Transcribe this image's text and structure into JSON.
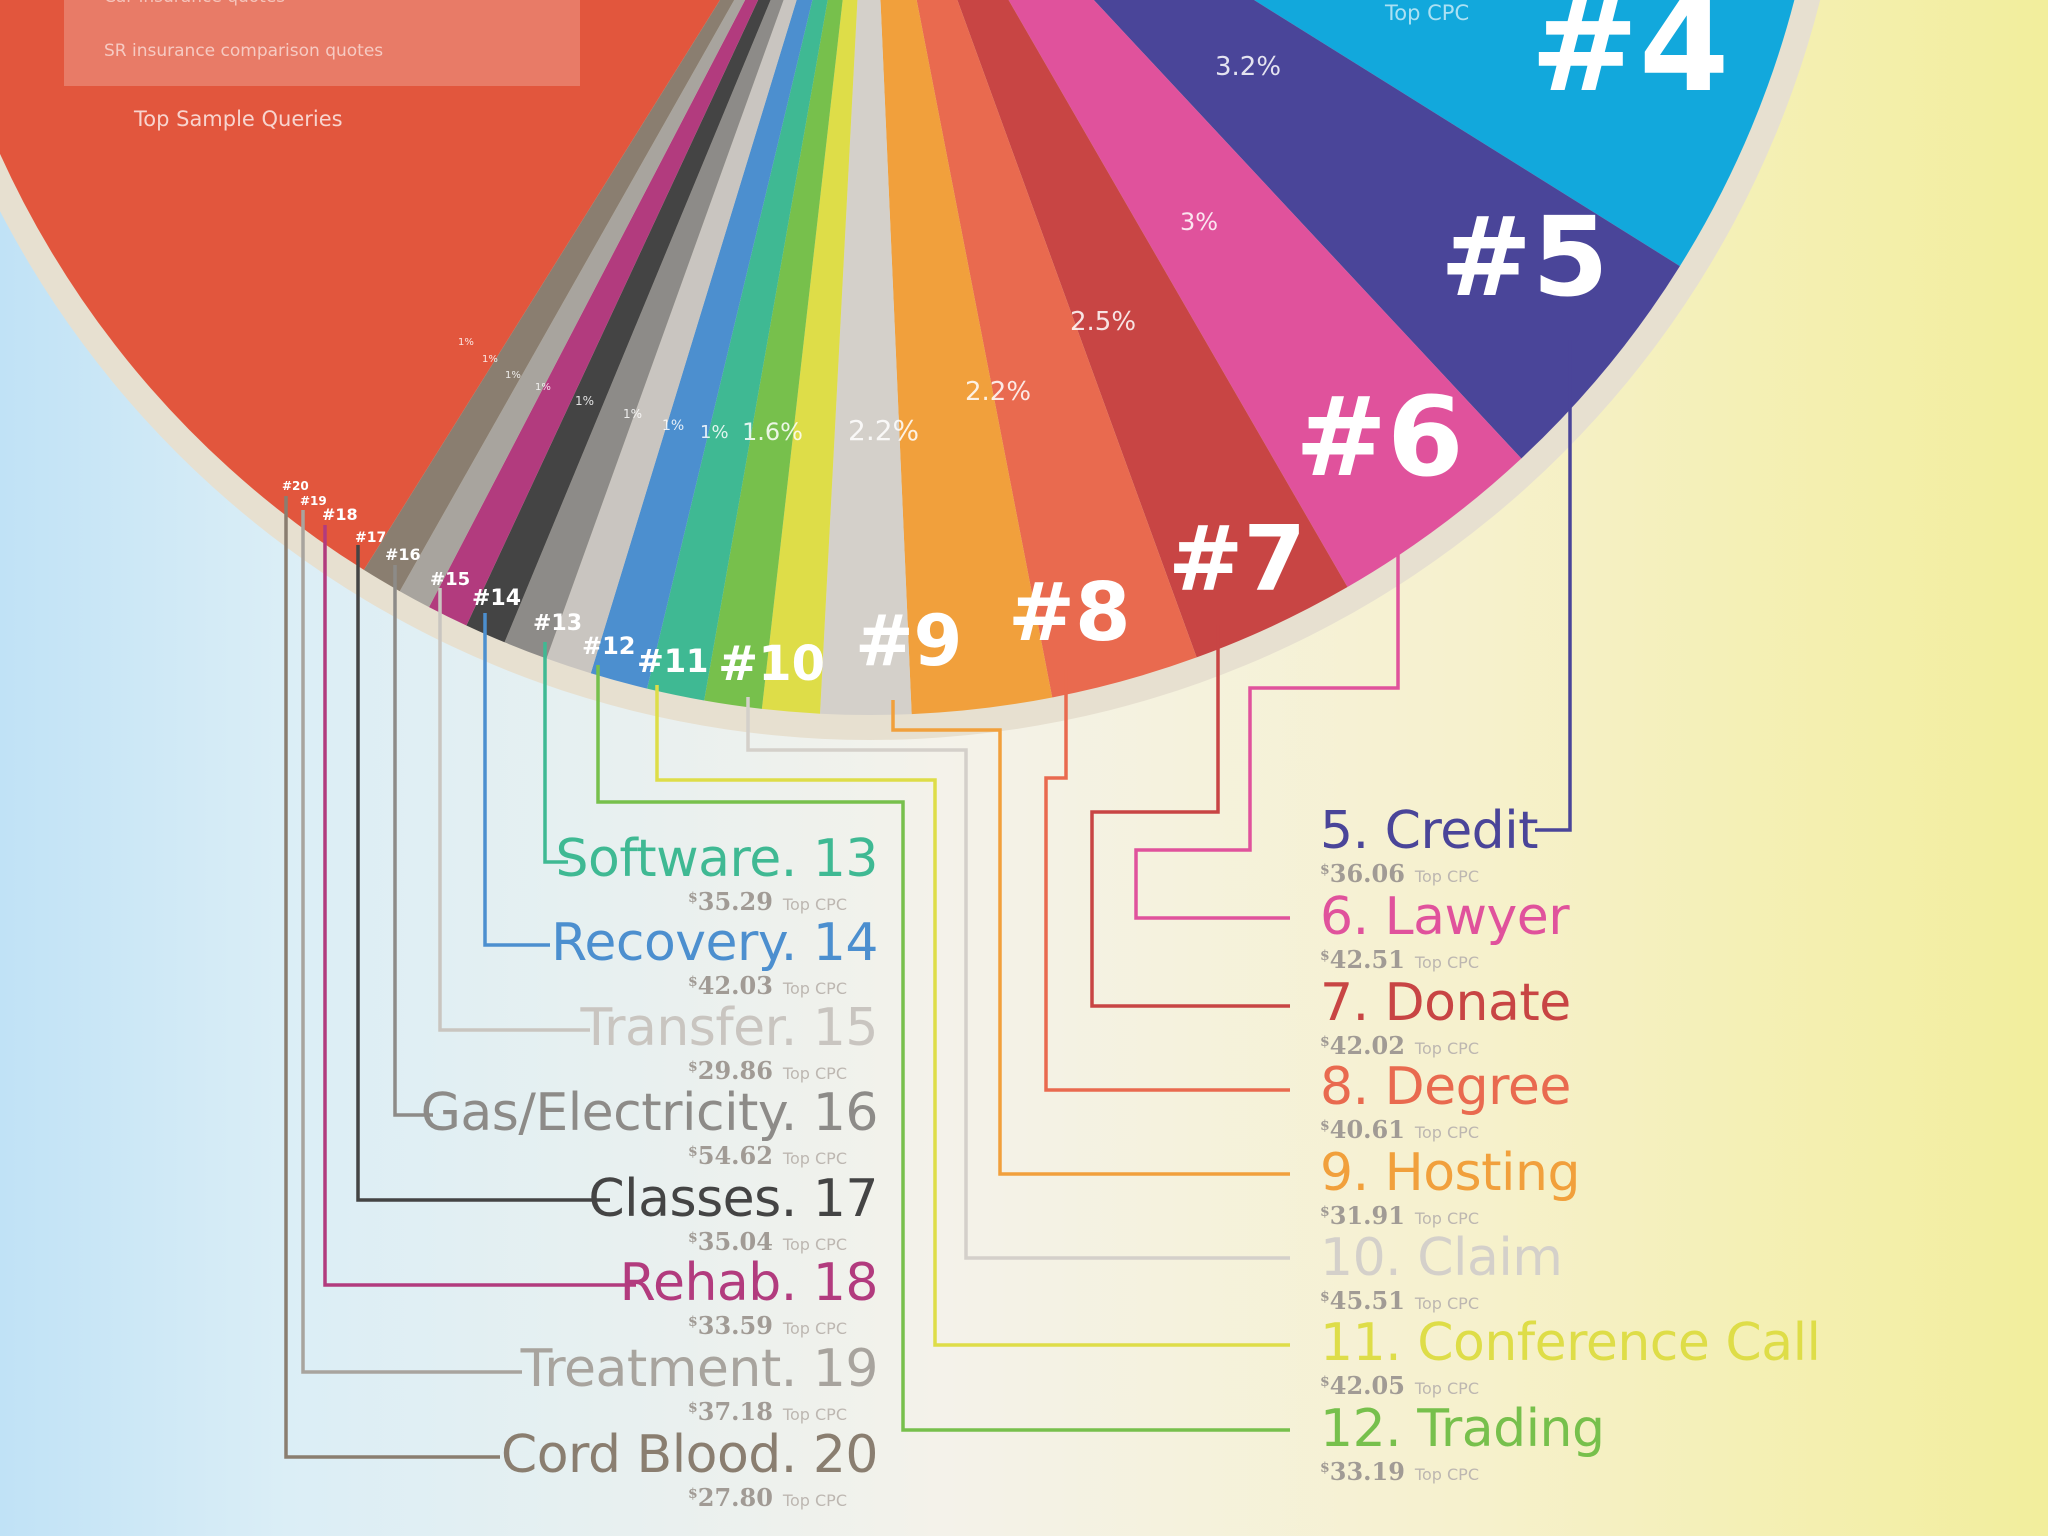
{
  "palette": {
    "rim": "#e7e0d0",
    "insurance": "#e2563d",
    "four": "#12a8dc",
    "five": "#4a4599",
    "six": "#e0529c",
    "seven": "#c84544",
    "eight": "#e96a4f",
    "nine": "#f1a03c",
    "ten": "#d4d0ca",
    "eleven": "#dedd48",
    "twelve": "#77c04c",
    "thirteen": "#3fb993",
    "fourteen": "#4c8fcf",
    "fifteen": "#c9c5c0",
    "sixteen": "#8d8b88",
    "seventeen": "#444444",
    "eighteen": "#b23b7e",
    "nineteen": "#a8a49e",
    "twenty": "#8a7e70"
  },
  "header": {
    "queries": [
      "Car insurance quotes",
      "SR insurance comparison quotes"
    ],
    "top_sample_queries": "Top Sample Queries",
    "top_cpc": "Top CPC"
  },
  "chart_data": {
    "type": "pie",
    "title": "",
    "slices": [
      {
        "rank": "#4",
        "label": "",
        "color": "#12a8dc"
      },
      {
        "rank": "#5",
        "label": "5. Credit",
        "cpc": "36.06",
        "pct": "3.2%",
        "color": "#4a4599"
      },
      {
        "rank": "#6",
        "label": "6. Lawyer",
        "cpc": "42.51",
        "pct": "3%",
        "color": "#e0529c"
      },
      {
        "rank": "#7",
        "label": "7. Donate",
        "cpc": "42.02",
        "pct": "2.5%",
        "color": "#c84544"
      },
      {
        "rank": "#8",
        "label": "8. Degree",
        "cpc": "40.61",
        "pct": "2.2%",
        "color": "#e96a4f"
      },
      {
        "rank": "#9",
        "label": "9. Hosting",
        "cpc": "31.91",
        "pct": "2.2%",
        "color": "#f1a03c"
      },
      {
        "rank": "#10",
        "label": "10. Claim",
        "cpc": "45.51",
        "pct": "1.6%",
        "color": "#d4d0ca"
      },
      {
        "rank": "#11",
        "label": "11. Conference Call",
        "cpc": "42.05",
        "pct": "1%",
        "color": "#dedd48"
      },
      {
        "rank": "#12",
        "label": "12. Trading",
        "cpc": "33.19",
        "pct": "1%",
        "color": "#77c04c"
      },
      {
        "rank": "#13",
        "label": "Software. 13",
        "cpc": "35.29",
        "pct": "1%",
        "color": "#3fb993"
      },
      {
        "rank": "#14",
        "label": "Recovery. 14",
        "cpc": "42.03",
        "pct": "1%",
        "color": "#4c8fcf"
      },
      {
        "rank": "#15",
        "label": "Transfer. 15",
        "cpc": "29.86",
        "pct": "1%",
        "color": "#c9c5c0"
      },
      {
        "rank": "#16",
        "label": "Gas/Electricity. 16",
        "cpc": "54.62",
        "pct": "1%",
        "color": "#8d8b88"
      },
      {
        "rank": "#17",
        "label": "Classes. 17",
        "cpc": "35.04",
        "pct": "1%",
        "color": "#444444"
      },
      {
        "rank": "#18",
        "label": "Rehab. 18",
        "cpc": "33.59",
        "pct": "1%",
        "color": "#b23b7e"
      },
      {
        "rank": "#19",
        "label": "Treatment. 19",
        "cpc": "37.18",
        "pct": "",
        "color": "#a8a49e"
      },
      {
        "rank": "#20",
        "label": "Cord Blood. 20",
        "cpc": "27.80",
        "pct": "",
        "color": "#8a7e70"
      }
    ],
    "cpc_prefix": "$",
    "cpc_suffix": "Top CPC"
  }
}
